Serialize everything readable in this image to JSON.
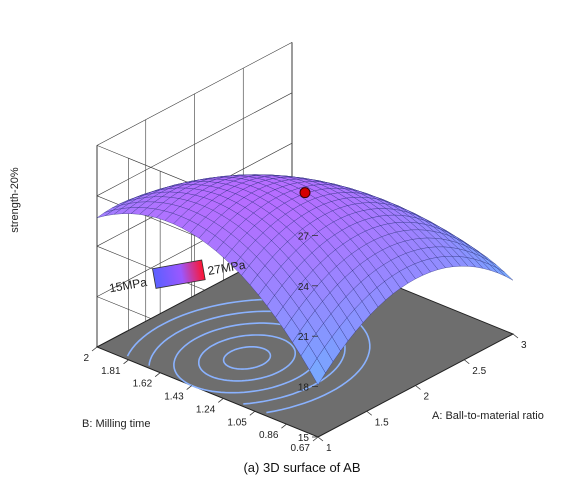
{
  "chart_data": {
    "type": "surface3d",
    "caption": "(a) 3D surface of AB",
    "zlabel": "strength-20%",
    "xlabel": "A: Ball-to-material ratio",
    "ylabel": "B: Milling time",
    "x_ticks": [
      "1",
      "1.5",
      "2",
      "2.5",
      "3"
    ],
    "y_ticks": [
      "0.67",
      "0.86",
      "1.05",
      "1.24",
      "1.43",
      "1.62",
      "1.81",
      "2"
    ],
    "z_ticks": [
      "15",
      "18",
      "21",
      "24",
      "27"
    ],
    "xlim": [
      1,
      3
    ],
    "ylim": [
      0.67,
      2
    ],
    "zlim": [
      15,
      27
    ],
    "surface_corner_values": {
      "x1_y0.67": 14.0,
      "x1_y2": 19.2,
      "x3_y0.67": 19.5,
      "x3_y2": 15.3
    },
    "surface_peak": {
      "x": 1.55,
      "y": 1.42,
      "z": 25.0
    },
    "design_point": {
      "x": 2.0,
      "y": 1.335,
      "z": 23.8
    },
    "legend": {
      "min_label": "15MPa",
      "max_label": "27MPa"
    },
    "contour_projection": true,
    "colors": {
      "low": "#5ce8ff",
      "mid": "#7f9cff",
      "high": "#b76cff",
      "floor": "#6e6e6e",
      "contour": "#8ab2ff",
      "point": "#d40000"
    }
  }
}
